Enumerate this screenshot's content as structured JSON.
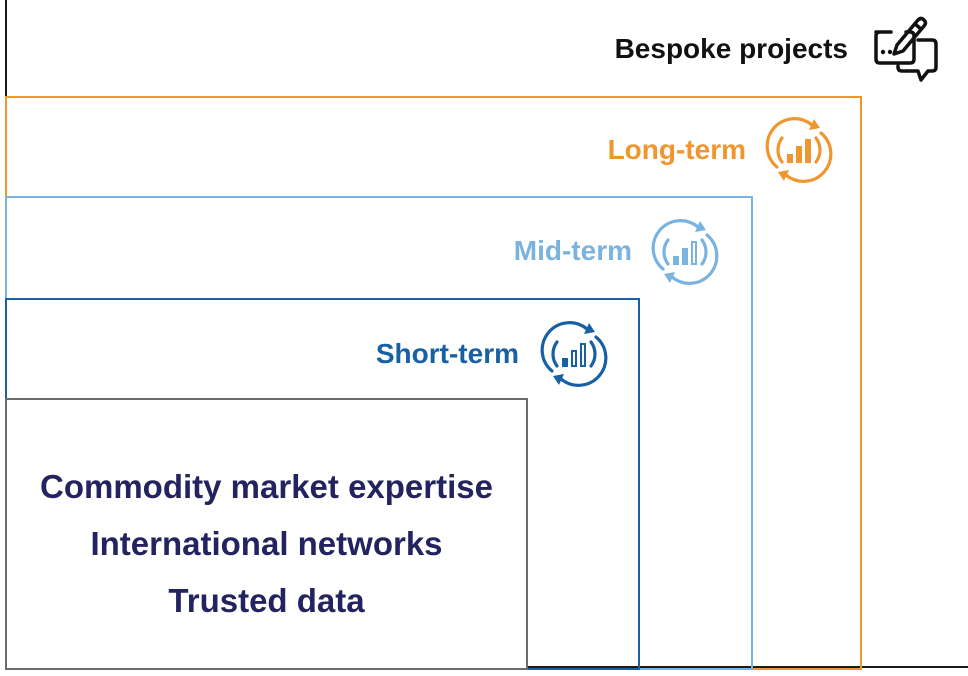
{
  "tiers": {
    "bespoke": {
      "label": "Bespoke projects",
      "icon": "chat-edit-icon",
      "color": "#111111"
    },
    "long_term": {
      "label": "Long-term",
      "icon": "cycle-bar-chart-icon",
      "color": "#f0962e"
    },
    "mid_term": {
      "label": "Mid-term",
      "icon": "cycle-bar-chart-icon",
      "color": "#7ab3e0"
    },
    "short_term": {
      "label": "Short-term",
      "icon": "cycle-bar-chart-icon",
      "color": "#1760a3"
    }
  },
  "core": {
    "color": "#232360",
    "lines": [
      "Commodity market expertise",
      "International networks",
      "Trusted data"
    ]
  }
}
